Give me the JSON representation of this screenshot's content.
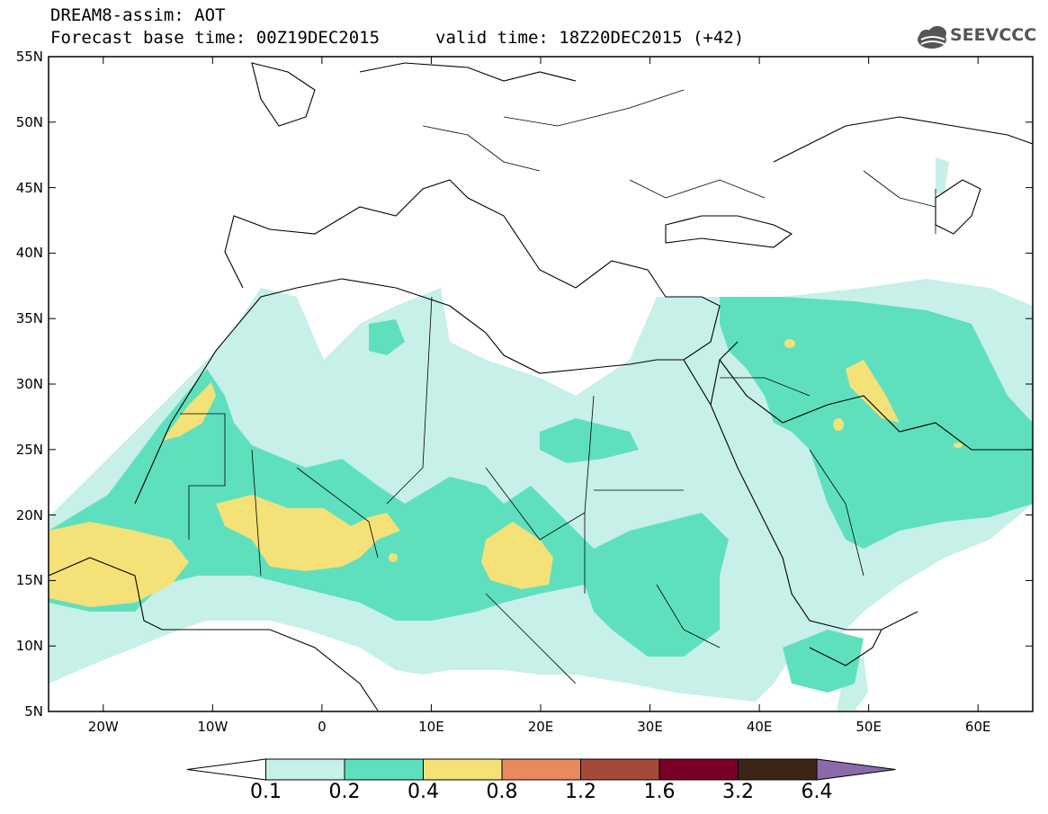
{
  "header": {
    "title_line1": "DREAM8-assim: AOT",
    "title_line2": "Forecast base time: 00Z19DEC2015",
    "valid_time": "valid time: 18Z20DEC2015 (+42)",
    "logo_text": "SEEVCCC"
  },
  "map": {
    "lat_labels": [
      "55N",
      "50N",
      "45N",
      "40N",
      "35N",
      "30N",
      "25N",
      "20N",
      "15N",
      "10N",
      "5N"
    ],
    "lon_labels": [
      "20W",
      "10W",
      "0",
      "10E",
      "20E",
      "30E",
      "40E",
      "50E",
      "60E"
    ],
    "extent": {
      "lon_min": -25,
      "lon_max": 65,
      "lat_min": 5,
      "lat_max": 55
    }
  },
  "colorbar": {
    "labels": [
      "0.1",
      "0.2",
      "0.4",
      "0.8",
      "1.2",
      "1.6",
      "3.2",
      "6.4"
    ],
    "colors": [
      "#ffffff",
      "#c7f0e8",
      "#5ee0be",
      "#f4e178",
      "#e8895e",
      "#a54a3a",
      "#7a0026",
      "#3b2616",
      "#8a6aab"
    ]
  }
}
